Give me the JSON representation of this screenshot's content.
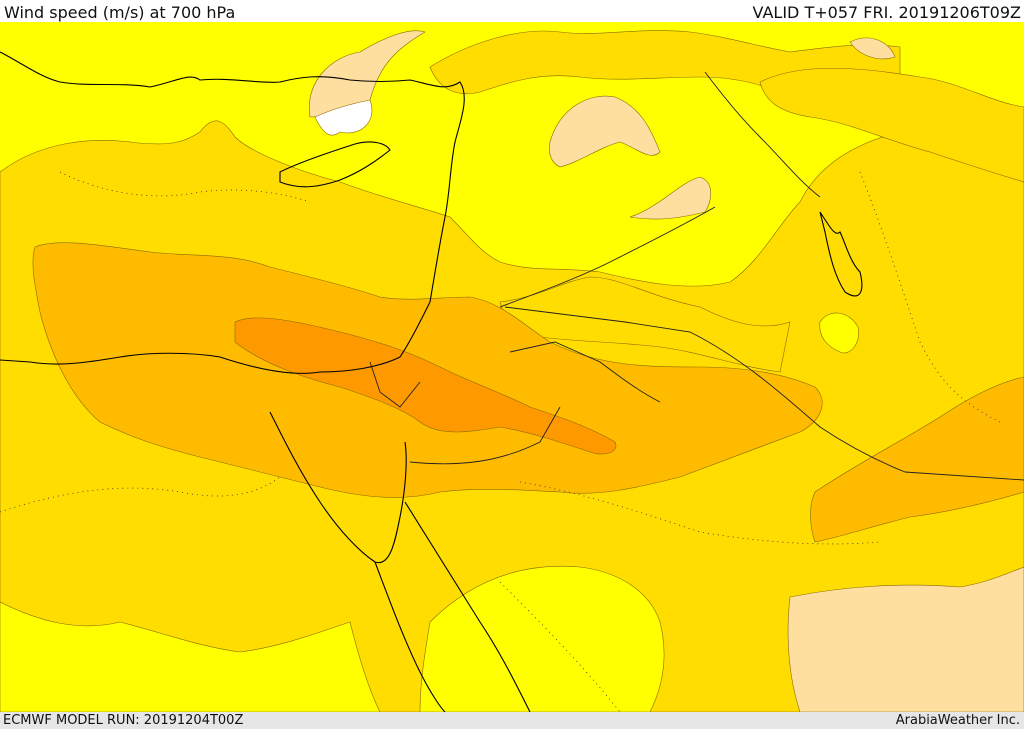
{
  "header": {
    "title": "Wind speed (m/s) at 700 hPa",
    "valid": "VALID T+057 FRI. 20191206T09Z"
  },
  "footer": {
    "model_run": "ECMWF MODEL RUN: 20191204T00Z",
    "credit": "ArabiaWeather Inc."
  },
  "map": {
    "field": "Wind speed at 700 hPa",
    "colors": {
      "band_lowest": "#ffffff",
      "band_1": "#ffff00",
      "band_2": "#ffdd00",
      "band_3": "#ffbb00",
      "band_4": "#ff9900",
      "band_peach": "#ffdfa0",
      "coastline": "#000000",
      "border": "#222222"
    }
  }
}
